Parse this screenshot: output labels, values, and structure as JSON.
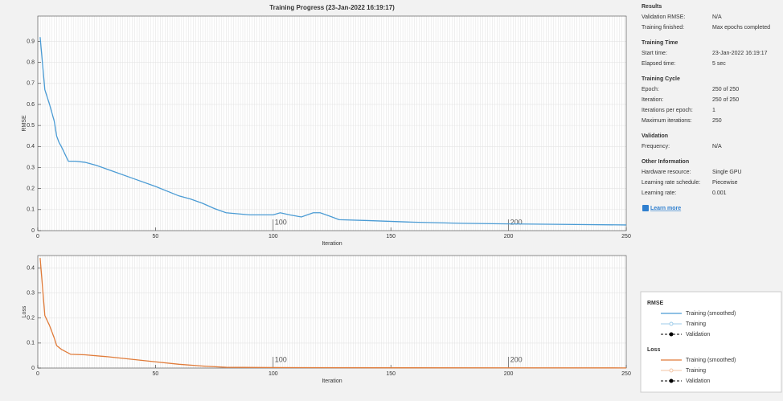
{
  "window_title": "Training Progress (23-Jan-2022 16:19:17)",
  "chart_data": [
    {
      "type": "line",
      "ylabel": "RMSE",
      "xlabel": "Iteration",
      "xlim": [
        0,
        250
      ],
      "xticks": [
        0,
        50,
        100,
        150,
        200,
        250
      ],
      "ylim": [
        0,
        1.02
      ],
      "yticks": [
        0,
        0.1,
        0.2,
        0.3,
        0.4,
        0.5,
        0.6,
        0.7,
        0.8,
        0.9
      ],
      "epoch_labels": [
        100,
        200
      ],
      "grid": true,
      "series": [
        {
          "name": "Training (smoothed)",
          "color": "#4a9bd4",
          "x": [
            1,
            3,
            5,
            7,
            8,
            9,
            10,
            13,
            16,
            20,
            25,
            30,
            40,
            50,
            60,
            65,
            70,
            75,
            80,
            90,
            100,
            103,
            107,
            112,
            117,
            120,
            125,
            128,
            140,
            160,
            180,
            200,
            220,
            250
          ],
          "values": [
            0.92,
            0.67,
            0.6,
            0.52,
            0.45,
            0.42,
            0.4,
            0.33,
            0.33,
            0.325,
            0.31,
            0.29,
            0.25,
            0.21,
            0.165,
            0.15,
            0.13,
            0.105,
            0.085,
            0.075,
            0.075,
            0.085,
            0.075,
            0.065,
            0.085,
            0.085,
            0.065,
            0.052,
            0.048,
            0.04,
            0.035,
            0.032,
            0.03,
            0.027
          ]
        }
      ]
    },
    {
      "type": "line",
      "ylabel": "Loss",
      "xlabel": "Iteration",
      "xlim": [
        0,
        250
      ],
      "xticks": [
        0,
        50,
        100,
        150,
        200,
        250
      ],
      "ylim": [
        0,
        0.45
      ],
      "yticks": [
        0,
        0.1,
        0.2,
        0.3,
        0.4
      ],
      "epoch_labels": [
        100,
        200
      ],
      "grid": true,
      "series": [
        {
          "name": "Training (smoothed)",
          "color": "#e07b39",
          "x": [
            1,
            3,
            5,
            7,
            8,
            10,
            14,
            20,
            30,
            40,
            50,
            60,
            70,
            80,
            100,
            150,
            250
          ],
          "values": [
            0.44,
            0.21,
            0.17,
            0.12,
            0.09,
            0.075,
            0.055,
            0.053,
            0.045,
            0.035,
            0.025,
            0.015,
            0.008,
            0.003,
            0.002,
            0.001,
            0.0005
          ]
        }
      ]
    }
  ],
  "info_panel": [
    {
      "heading": "Results",
      "rows": [
        [
          "Validation RMSE:",
          "N/A"
        ],
        [
          "Training finished:",
          "Max epochs completed"
        ]
      ]
    },
    {
      "heading": "Training Time",
      "rows": [
        [
          "Start time:",
          "23-Jan-2022 16:19:17"
        ],
        [
          "Elapsed time:",
          "5 sec"
        ]
      ]
    },
    {
      "heading": "Training Cycle",
      "rows": [
        [
          "Epoch:",
          "250 of 250"
        ],
        [
          "Iteration:",
          "250 of 250"
        ],
        [
          "Iterations per epoch:",
          "1"
        ],
        [
          "Maximum iterations:",
          "250"
        ]
      ]
    },
    {
      "heading": "Validation",
      "rows": [
        [
          "Frequency:",
          "N/A"
        ]
      ]
    },
    {
      "heading": "Other Information",
      "rows": [
        [
          "Hardware resource:",
          "Single GPU"
        ],
        [
          "Learning rate schedule:",
          "Piecewise"
        ],
        [
          "Learning rate:",
          "0.001"
        ]
      ]
    }
  ],
  "learn_more": "Learn more",
  "legend": [
    [
      {
        "label": "Training",
        "color": "#9ccbe9"
      },
      {
        "label": "Validation",
        "color": "#000000"
      }
    ],
    [
      {
        "label": "Training",
        "color": "#f3c4a4"
      },
      {
        "label": "Validation",
        "color": "#000000"
      }
    ]
  ]
}
